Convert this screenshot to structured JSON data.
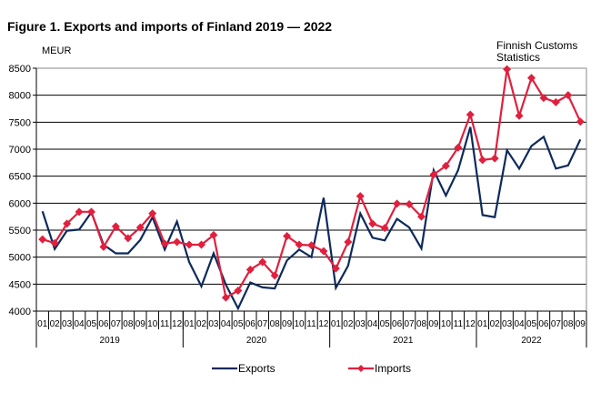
{
  "chart_data": {
    "type": "line",
    "title": "Figure 1. Exports and imports of Finland 2019 — 2022",
    "ylabel": "MEUR",
    "annotation": "Finnish Customs Statistics",
    "ylim": [
      4000,
      8500
    ],
    "yticks": [
      4000,
      4500,
      5000,
      5500,
      6000,
      6500,
      7000,
      7500,
      8000,
      8500
    ],
    "grid": true,
    "legend": "bottom",
    "years": [
      {
        "label": "2019",
        "months": 12
      },
      {
        "label": "2020",
        "months": 12
      },
      {
        "label": "2021",
        "months": 12
      },
      {
        "label": "2022",
        "months": 9
      }
    ],
    "months": [
      "01",
      "02",
      "03",
      "04",
      "05",
      "06",
      "07",
      "08",
      "09",
      "10",
      "11",
      "12",
      "01",
      "02",
      "03",
      "04",
      "05",
      "06",
      "07",
      "08",
      "09",
      "10",
      "11",
      "12",
      "01",
      "02",
      "03",
      "04",
      "05",
      "06",
      "07",
      "08",
      "09",
      "10",
      "11",
      "12",
      "01",
      "02",
      "03",
      "04",
      "05",
      "06",
      "07",
      "08",
      "09"
    ],
    "series": [
      {
        "name": "Exports",
        "color": "#0d2a5c",
        "marker": "none",
        "values": [
          5850,
          5150,
          5490,
          5510,
          5830,
          5230,
          5070,
          5070,
          5320,
          5740,
          5140,
          5660,
          4910,
          4460,
          5070,
          4490,
          4050,
          4530,
          4440,
          4420,
          4940,
          5140,
          5000,
          6100,
          4430,
          4840,
          5810,
          5360,
          5310,
          5710,
          5550,
          5160,
          6610,
          6140,
          6610,
          7410,
          5780,
          5740,
          6980,
          6640,
          7060,
          7230,
          6640,
          6700,
          7180
        ]
      },
      {
        "name": "Imports",
        "color": "#e0203e",
        "marker": "diamond",
        "values": [
          5330,
          5260,
          5620,
          5840,
          5840,
          5190,
          5570,
          5350,
          5550,
          5810,
          5250,
          5280,
          5230,
          5230,
          5410,
          4250,
          4380,
          4770,
          4910,
          4660,
          5390,
          5230,
          5220,
          5110,
          4790,
          5280,
          6130,
          5620,
          5540,
          5990,
          5980,
          5750,
          6530,
          6690,
          7030,
          7640,
          6800,
          6830,
          8480,
          7620,
          8320,
          7950,
          7870,
          8000,
          7510
        ]
      }
    ]
  }
}
